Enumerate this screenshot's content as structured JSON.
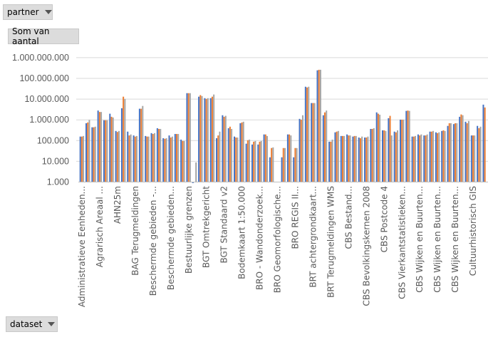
{
  "filters": {
    "partner_label": "partner",
    "value_field_label": "Som van aantal",
    "dataset_label": "dataset"
  },
  "chart_data": {
    "type": "bar",
    "title": "",
    "xlabel": "",
    "ylabel": "",
    "yscale": "log",
    "ylim": [
      1000,
      1000000000
    ],
    "yticks": [
      "1.000",
      "10.000",
      "100.000",
      "1.000.000",
      "10.000.000",
      "100.000.000",
      "1.000.000.000"
    ],
    "grid": true,
    "legend": "none",
    "colors": [
      "#4472C4",
      "#ED7D31",
      "#A5A5A5"
    ],
    "categories": [
      "Administratieve Eenheden...",
      "",
      "",
      "Agrarisch Areaal ...",
      "",
      "",
      "AHN25m",
      "",
      "",
      "BAG Terugmeldingen",
      "",
      "",
      "Beschermde gebieden -...",
      "",
      "",
      "Beschermde gebieden...",
      "",
      "",
      "Bestuurlijke grenzen",
      "",
      "",
      "BGT Omtrekgericht",
      "",
      "",
      "BGT Standaard v2",
      "",
      "",
      "Bodemkaart 1:50.000",
      "",
      "",
      "BRO - Wandonderzoek...",
      "",
      "",
      "BRO Geomorfologische...",
      "",
      "",
      "BRO REGIS II...",
      "",
      "",
      "BRT achtergrondkaart...",
      "",
      "",
      "BRT Terugmeldingen WMS",
      "",
      "",
      "CBS Bestand...",
      "",
      "",
      "CBS Bevolkingskernen 2008",
      "",
      "",
      "CBS Postcode 4",
      "",
      "",
      "CBS Vierkantstatistieken...",
      "",
      "",
      "CBS Wijken en Buurten...",
      "",
      "",
      "CBS Wijken en Buurten...",
      "",
      "",
      "CBS Wijken en Buurten...",
      "",
      "",
      "Cultuurhistorisch GIS",
      "",
      ""
    ],
    "series": [
      {
        "values": [
          150000,
          660000,
          420000,
          2700000,
          920000,
          1900000,
          280000,
          3500000,
          260000,
          170000,
          3300000,
          160000,
          220000,
          380000,
          125000,
          170000,
          200000,
          107000,
          18600000,
          900,
          12600000,
          10700000,
          10700000,
          125000,
          1600000,
          380000,
          150000,
          660000,
          68000,
          62000,
          62000,
          190000,
          15000,
          null,
          15000,
          190000,
          15000,
          1070000,
          38000000,
          6200000,
          235000000,
          1600000,
          85000,
          240000,
          160000,
          190000,
          150000,
          135000,
          135000,
          350000,
          2200000,
          300000,
          1150000,
          260000,
          980000,
          2600000,
          150000,
          190000,
          170000,
          260000,
          240000,
          280000,
          490000,
          600000,
          1350000,
          780000,
          170000,
          490000,
          5200000
        ]
      },
      {
        "values": [
          150000,
          720000,
          420000,
          2300000,
          920000,
          1350000,
          250000,
          12600000,
          170000,
          150000,
          3300000,
          150000,
          200000,
          350000,
          117000,
          135000,
          200000,
          92000,
          18600000,
          null,
          15000000,
          9800000,
          12600000,
          170000,
          1350000,
          450000,
          135000,
          720000,
          100000,
          85000,
          85000,
          190000,
          42000,
          null,
          42000,
          190000,
          42000,
          980000,
          35000000,
          6200000,
          250000000,
          2200000,
          85000,
          260000,
          160000,
          170000,
          160000,
          125000,
          135000,
          350000,
          1900000,
          300000,
          1500000,
          240000,
          980000,
          2700000,
          150000,
          170000,
          170000,
          260000,
          220000,
          300000,
          660000,
          660000,
          1750000,
          660000,
          170000,
          380000,
          3800000
        ]
      },
      {
        "values": [
          160000,
          950000,
          450000,
          2300000,
          920000,
          1250000,
          280000,
          9800000,
          190000,
          160000,
          4500000,
          150000,
          220000,
          350000,
          125000,
          150000,
          200000,
          92000,
          18600000,
          8500,
          13500000,
          10700000,
          16000000,
          260000,
          1500000,
          350000,
          135000,
          780000,
          107000,
          92000,
          92000,
          160000,
          45000,
          null,
          42000,
          170000,
          42000,
          1600000,
          38000000,
          6200000,
          250000000,
          2700000,
          107000,
          280000,
          160000,
          170000,
          160000,
          150000,
          150000,
          380000,
          1700000,
          280000,
          170000,
          300000,
          980000,
          2600000,
          160000,
          190000,
          190000,
          280000,
          240000,
          280000,
          660000,
          660000,
          1600000,
          850000,
          170000,
          450000,
          null
        ]
      }
    ]
  }
}
